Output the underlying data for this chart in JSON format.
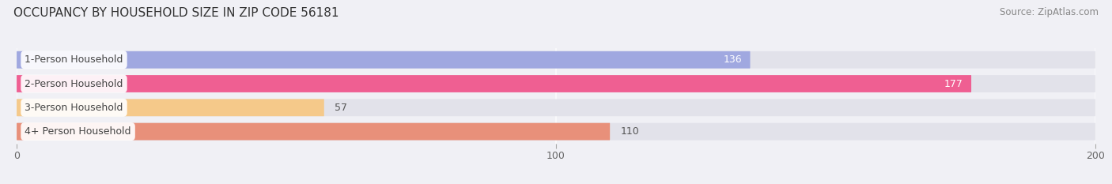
{
  "title": "OCCUPANCY BY HOUSEHOLD SIZE IN ZIP CODE 56181",
  "source": "Source: ZipAtlas.com",
  "categories": [
    "1-Person Household",
    "2-Person Household",
    "3-Person Household",
    "4+ Person Household"
  ],
  "values": [
    136,
    177,
    57,
    110
  ],
  "bar_colors": [
    "#a0a8e0",
    "#ef5f92",
    "#f5c98a",
    "#e8907a"
  ],
  "xlim": [
    0,
    200
  ],
  "xticks": [
    0,
    100,
    200
  ],
  "background_color": "#f0f0f5",
  "bar_bg_color": "#e2e2ea",
  "title_fontsize": 11,
  "source_fontsize": 8.5,
  "label_fontsize": 9,
  "value_fontsize": 9
}
